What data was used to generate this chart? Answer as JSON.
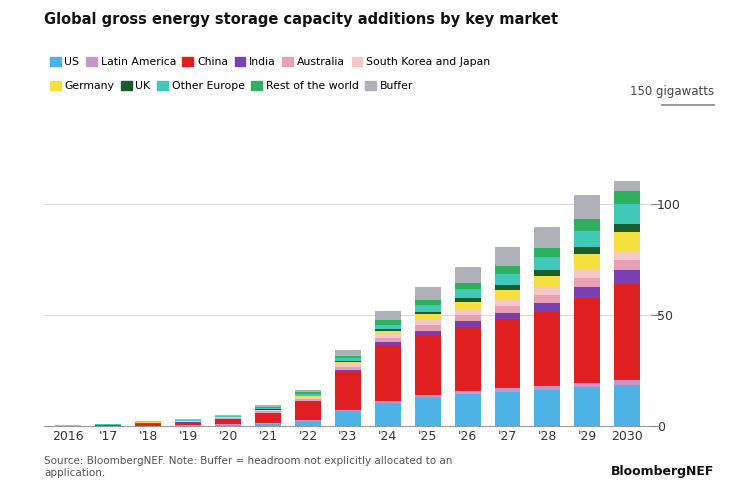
{
  "title": "Global gross energy storage capacity additions by key market",
  "source_text": "Source: BloombergNEF. Note: Buffer = headroom not explicitly allocated to an\napplication.",
  "brand_text": "BloombergNEF",
  "year_labels": [
    "2016",
    "'17",
    "'18",
    "'19",
    "'20",
    "'21",
    "'22",
    "'23",
    "'24",
    "'25",
    "'26",
    "'27",
    "'28",
    "'29",
    "2030"
  ],
  "series": {
    "US": [
      0.1,
      0.15,
      0.3,
      0.5,
      0.8,
      1.2,
      2.5,
      7.0,
      10.5,
      13.0,
      14.5,
      15.5,
      16.5,
      17.5,
      18.5
    ],
    "Latin America": [
      0.02,
      0.03,
      0.05,
      0.08,
      0.12,
      0.18,
      0.3,
      0.5,
      0.8,
      1.0,
      1.2,
      1.5,
      1.8,
      2.1,
      2.5
    ],
    "China": [
      0.2,
      0.3,
      0.9,
      1.1,
      2.2,
      4.5,
      8.0,
      17.0,
      25.0,
      27.0,
      29.0,
      31.0,
      33.0,
      38.0,
      43.0
    ],
    "India": [
      0.01,
      0.02,
      0.05,
      0.08,
      0.12,
      0.2,
      0.4,
      0.8,
      1.5,
      2.0,
      2.5,
      3.0,
      4.0,
      5.0,
      6.0
    ],
    "Australia": [
      0.05,
      0.1,
      0.2,
      0.3,
      0.5,
      0.7,
      1.0,
      1.5,
      2.0,
      2.5,
      2.8,
      3.0,
      3.5,
      4.0,
      4.5
    ],
    "South Korea and Japan": [
      0.05,
      0.08,
      0.15,
      0.2,
      0.3,
      0.5,
      0.8,
      1.2,
      1.8,
      2.2,
      2.5,
      2.8,
      3.2,
      3.8,
      4.2
    ],
    "Germany": [
      0.03,
      0.05,
      0.08,
      0.1,
      0.15,
      0.25,
      0.4,
      0.7,
      1.2,
      2.5,
      3.5,
      4.5,
      5.5,
      7.0,
      8.5
    ],
    "UK": [
      0.02,
      0.04,
      0.07,
      0.1,
      0.15,
      0.25,
      0.4,
      0.6,
      0.9,
      1.2,
      1.5,
      2.0,
      2.5,
      3.0,
      3.5
    ],
    "Other Europe": [
      0.03,
      0.05,
      0.1,
      0.15,
      0.2,
      0.4,
      0.7,
      1.2,
      2.0,
      3.0,
      4.0,
      5.0,
      6.0,
      7.5,
      9.0
    ],
    "Rest of the world": [
      0.03,
      0.05,
      0.1,
      0.15,
      0.25,
      0.4,
      0.7,
      1.2,
      2.0,
      2.5,
      3.0,
      3.5,
      4.0,
      5.0,
      6.0
    ],
    "Buffer": [
      0.05,
      0.1,
      0.2,
      0.3,
      0.5,
      0.8,
      1.2,
      2.5,
      4.0,
      5.5,
      7.0,
      8.5,
      9.5,
      11.0,
      13.5
    ]
  },
  "colors": {
    "US": "#4db3e6",
    "Latin America": "#c896c8",
    "China": "#e02020",
    "India": "#7b3fb5",
    "Australia": "#e8a0b4",
    "South Korea and Japan": "#f5c8c8",
    "Germany": "#f5e040",
    "UK": "#1a5c2e",
    "Other Europe": "#40c8b8",
    "Rest of the world": "#2db060",
    "Buffer": "#b0b0b8"
  },
  "ylim": [
    0,
    110
  ],
  "yticks": [
    0,
    50,
    100
  ],
  "bg_color": "#ffffff"
}
